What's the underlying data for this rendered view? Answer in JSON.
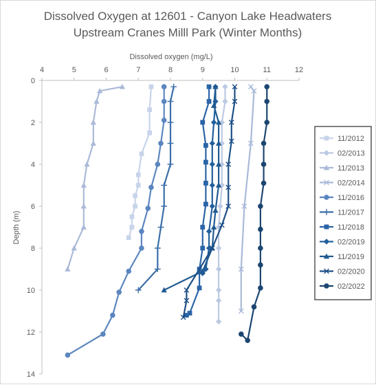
{
  "chart_data": {
    "type": "line",
    "title": [
      "Dissolved Oxygen at 12601 - Canyon Lake Headwaters",
      "Upstream Cranes Milll Park (Winter Months)"
    ],
    "xlabel": "Dissolved oxygen (mg/L)",
    "ylabel": "Depth (m)",
    "xlim": [
      4,
      12
    ],
    "ylim": [
      0,
      14
    ],
    "y_reversed": true,
    "x_axis_position": "top",
    "x_ticks": [
      "4",
      "5",
      "6",
      "7",
      "8",
      "9",
      "10",
      "11",
      "12"
    ],
    "y_ticks": [
      "0",
      "2",
      "4",
      "6",
      "8",
      "10",
      "12",
      "14"
    ],
    "grid": false,
    "legend_placement": "right",
    "series": [
      {
        "name": "11/2012",
        "color": "#c8d4ea",
        "marker": "square",
        "points": [
          [
            7.4,
            0.3
          ],
          [
            7.35,
            1.4
          ],
          [
            7.35,
            2.5
          ],
          [
            7.1,
            3.5
          ],
          [
            7.0,
            4.5
          ],
          [
            7.0,
            5.0
          ],
          [
            6.9,
            5.5
          ],
          [
            6.9,
            6.0
          ],
          [
            6.8,
            6.5
          ],
          [
            6.8,
            7.0
          ],
          [
            6.7,
            7.5
          ]
        ]
      },
      {
        "name": "02/2013",
        "color": "#bcc9e2",
        "marker": "diamond",
        "points": [
          [
            9.7,
            0.3
          ],
          [
            9.7,
            1.0
          ],
          [
            9.6,
            2.0
          ],
          [
            9.6,
            3.0
          ],
          [
            9.6,
            4.0
          ],
          [
            9.6,
            5.0
          ],
          [
            9.55,
            6.0
          ],
          [
            9.5,
            7.0
          ],
          [
            9.5,
            8.0
          ],
          [
            9.5,
            9.0
          ],
          [
            9.5,
            10.0
          ],
          [
            9.5,
            10.5
          ],
          [
            9.5,
            11.5
          ]
        ]
      },
      {
        "name": "11/2013",
        "color": "#abbad8",
        "marker": "triangle",
        "points": [
          [
            6.5,
            0.3
          ],
          [
            5.8,
            0.5
          ],
          [
            5.7,
            1.0
          ],
          [
            5.6,
            2.0
          ],
          [
            5.6,
            3.0
          ],
          [
            5.4,
            4.0
          ],
          [
            5.3,
            5.0
          ],
          [
            5.3,
            6.0
          ],
          [
            5.3,
            7.0
          ],
          [
            5.0,
            8.0
          ],
          [
            4.8,
            9.0
          ]
        ]
      },
      {
        "name": "02/2014",
        "color": "#a9b9d9",
        "marker": "x",
        "points": [
          [
            10.5,
            0.3
          ],
          [
            10.6,
            0.5
          ],
          [
            10.5,
            3.0
          ],
          [
            10.3,
            6.0
          ],
          [
            10.2,
            9.0
          ],
          [
            10.2,
            11.0
          ]
        ]
      },
      {
        "name": "11/2016",
        "color": "#5b86c0",
        "marker": "circle",
        "points": [
          [
            7.8,
            0.3
          ],
          [
            7.8,
            1.0
          ],
          [
            7.8,
            1.9
          ],
          [
            7.7,
            3.0
          ],
          [
            7.6,
            4.0
          ],
          [
            7.4,
            5.1
          ],
          [
            7.3,
            6.1
          ],
          [
            7.1,
            7.2
          ],
          [
            7.1,
            8.0
          ],
          [
            6.7,
            9.1
          ],
          [
            6.4,
            10.1
          ],
          [
            6.2,
            11.2
          ],
          [
            5.9,
            12.1
          ],
          [
            4.8,
            13.1
          ]
        ]
      },
      {
        "name": "11/2017",
        "color": "#3a6ea8",
        "marker": "plus",
        "points": [
          [
            8.1,
            0.3
          ],
          [
            8.0,
            1.0
          ],
          [
            8.0,
            2.0
          ],
          [
            8.0,
            3.0
          ],
          [
            8.0,
            4.0
          ],
          [
            7.8,
            5.0
          ],
          [
            7.8,
            6.0
          ],
          [
            7.7,
            7.0
          ],
          [
            7.6,
            8.0
          ],
          [
            7.6,
            9.0
          ],
          [
            7.0,
            10.0
          ]
        ]
      },
      {
        "name": "11/2018",
        "color": "#2a64a7",
        "marker": "square",
        "points": [
          [
            9.2,
            0.3
          ],
          [
            9.2,
            1.0
          ],
          [
            9.0,
            2.0
          ],
          [
            9.1,
            3.1
          ],
          [
            9.1,
            3.9
          ],
          [
            9.1,
            4.9
          ],
          [
            9.1,
            5.9
          ],
          [
            9.0,
            7.0
          ],
          [
            9.0,
            8.0
          ],
          [
            8.9,
            9.0
          ],
          [
            8.9,
            9.9
          ],
          [
            8.6,
            11.1
          ],
          [
            8.5,
            11.2
          ]
        ]
      },
      {
        "name": "02/2019",
        "color": "#225f9c",
        "marker": "diamond",
        "points": [
          [
            9.4,
            0.3
          ],
          [
            9.4,
            1.0
          ],
          [
            9.35,
            2.0
          ],
          [
            9.3,
            3.0
          ],
          [
            9.3,
            4.0
          ],
          [
            9.3,
            5.0
          ],
          [
            9.3,
            6.0
          ],
          [
            9.2,
            7.2
          ],
          [
            9.2,
            8.0
          ],
          [
            9.1,
            9.0
          ],
          [
            9.0,
            9.2
          ]
        ]
      },
      {
        "name": "11/2019",
        "color": "#205a91",
        "marker": "triangle",
        "points": [
          [
            9.4,
            0.3
          ],
          [
            9.35,
            1.2
          ],
          [
            9.5,
            2.0
          ],
          [
            9.5,
            3.0
          ],
          [
            9.5,
            4.0
          ],
          [
            9.5,
            5.0
          ],
          [
            9.4,
            6.2
          ],
          [
            9.35,
            7.0
          ],
          [
            9.3,
            8.0
          ],
          [
            9.0,
            9.1
          ],
          [
            7.8,
            10.0
          ]
        ]
      },
      {
        "name": "02/2020",
        "color": "#1d4f86",
        "marker": "x",
        "points": [
          [
            10.0,
            0.3
          ],
          [
            10.0,
            1.0
          ],
          [
            9.9,
            2.0
          ],
          [
            9.9,
            2.9
          ],
          [
            9.8,
            4.0
          ],
          [
            9.8,
            5.1
          ],
          [
            9.8,
            6.0
          ],
          [
            9.6,
            6.9
          ],
          [
            9.3,
            8.0
          ],
          [
            8.5,
            10.0
          ],
          [
            8.5,
            10.5
          ],
          [
            8.4,
            11.3
          ]
        ]
      },
      {
        "name": "02/2022",
        "color": "#1c4670",
        "marker": "circle",
        "points": [
          [
            11.0,
            0.3
          ],
          [
            11.0,
            1.0
          ],
          [
            11.0,
            2.0
          ],
          [
            10.9,
            3.0
          ],
          [
            10.9,
            4.0
          ],
          [
            10.9,
            4.9
          ],
          [
            10.8,
            6.0
          ],
          [
            10.8,
            7.1
          ],
          [
            10.8,
            8.0
          ],
          [
            10.8,
            8.8
          ],
          [
            10.8,
            9.9
          ],
          [
            10.6,
            10.8
          ],
          [
            10.4,
            12.4
          ],
          [
            10.2,
            12.1
          ]
        ]
      }
    ]
  }
}
